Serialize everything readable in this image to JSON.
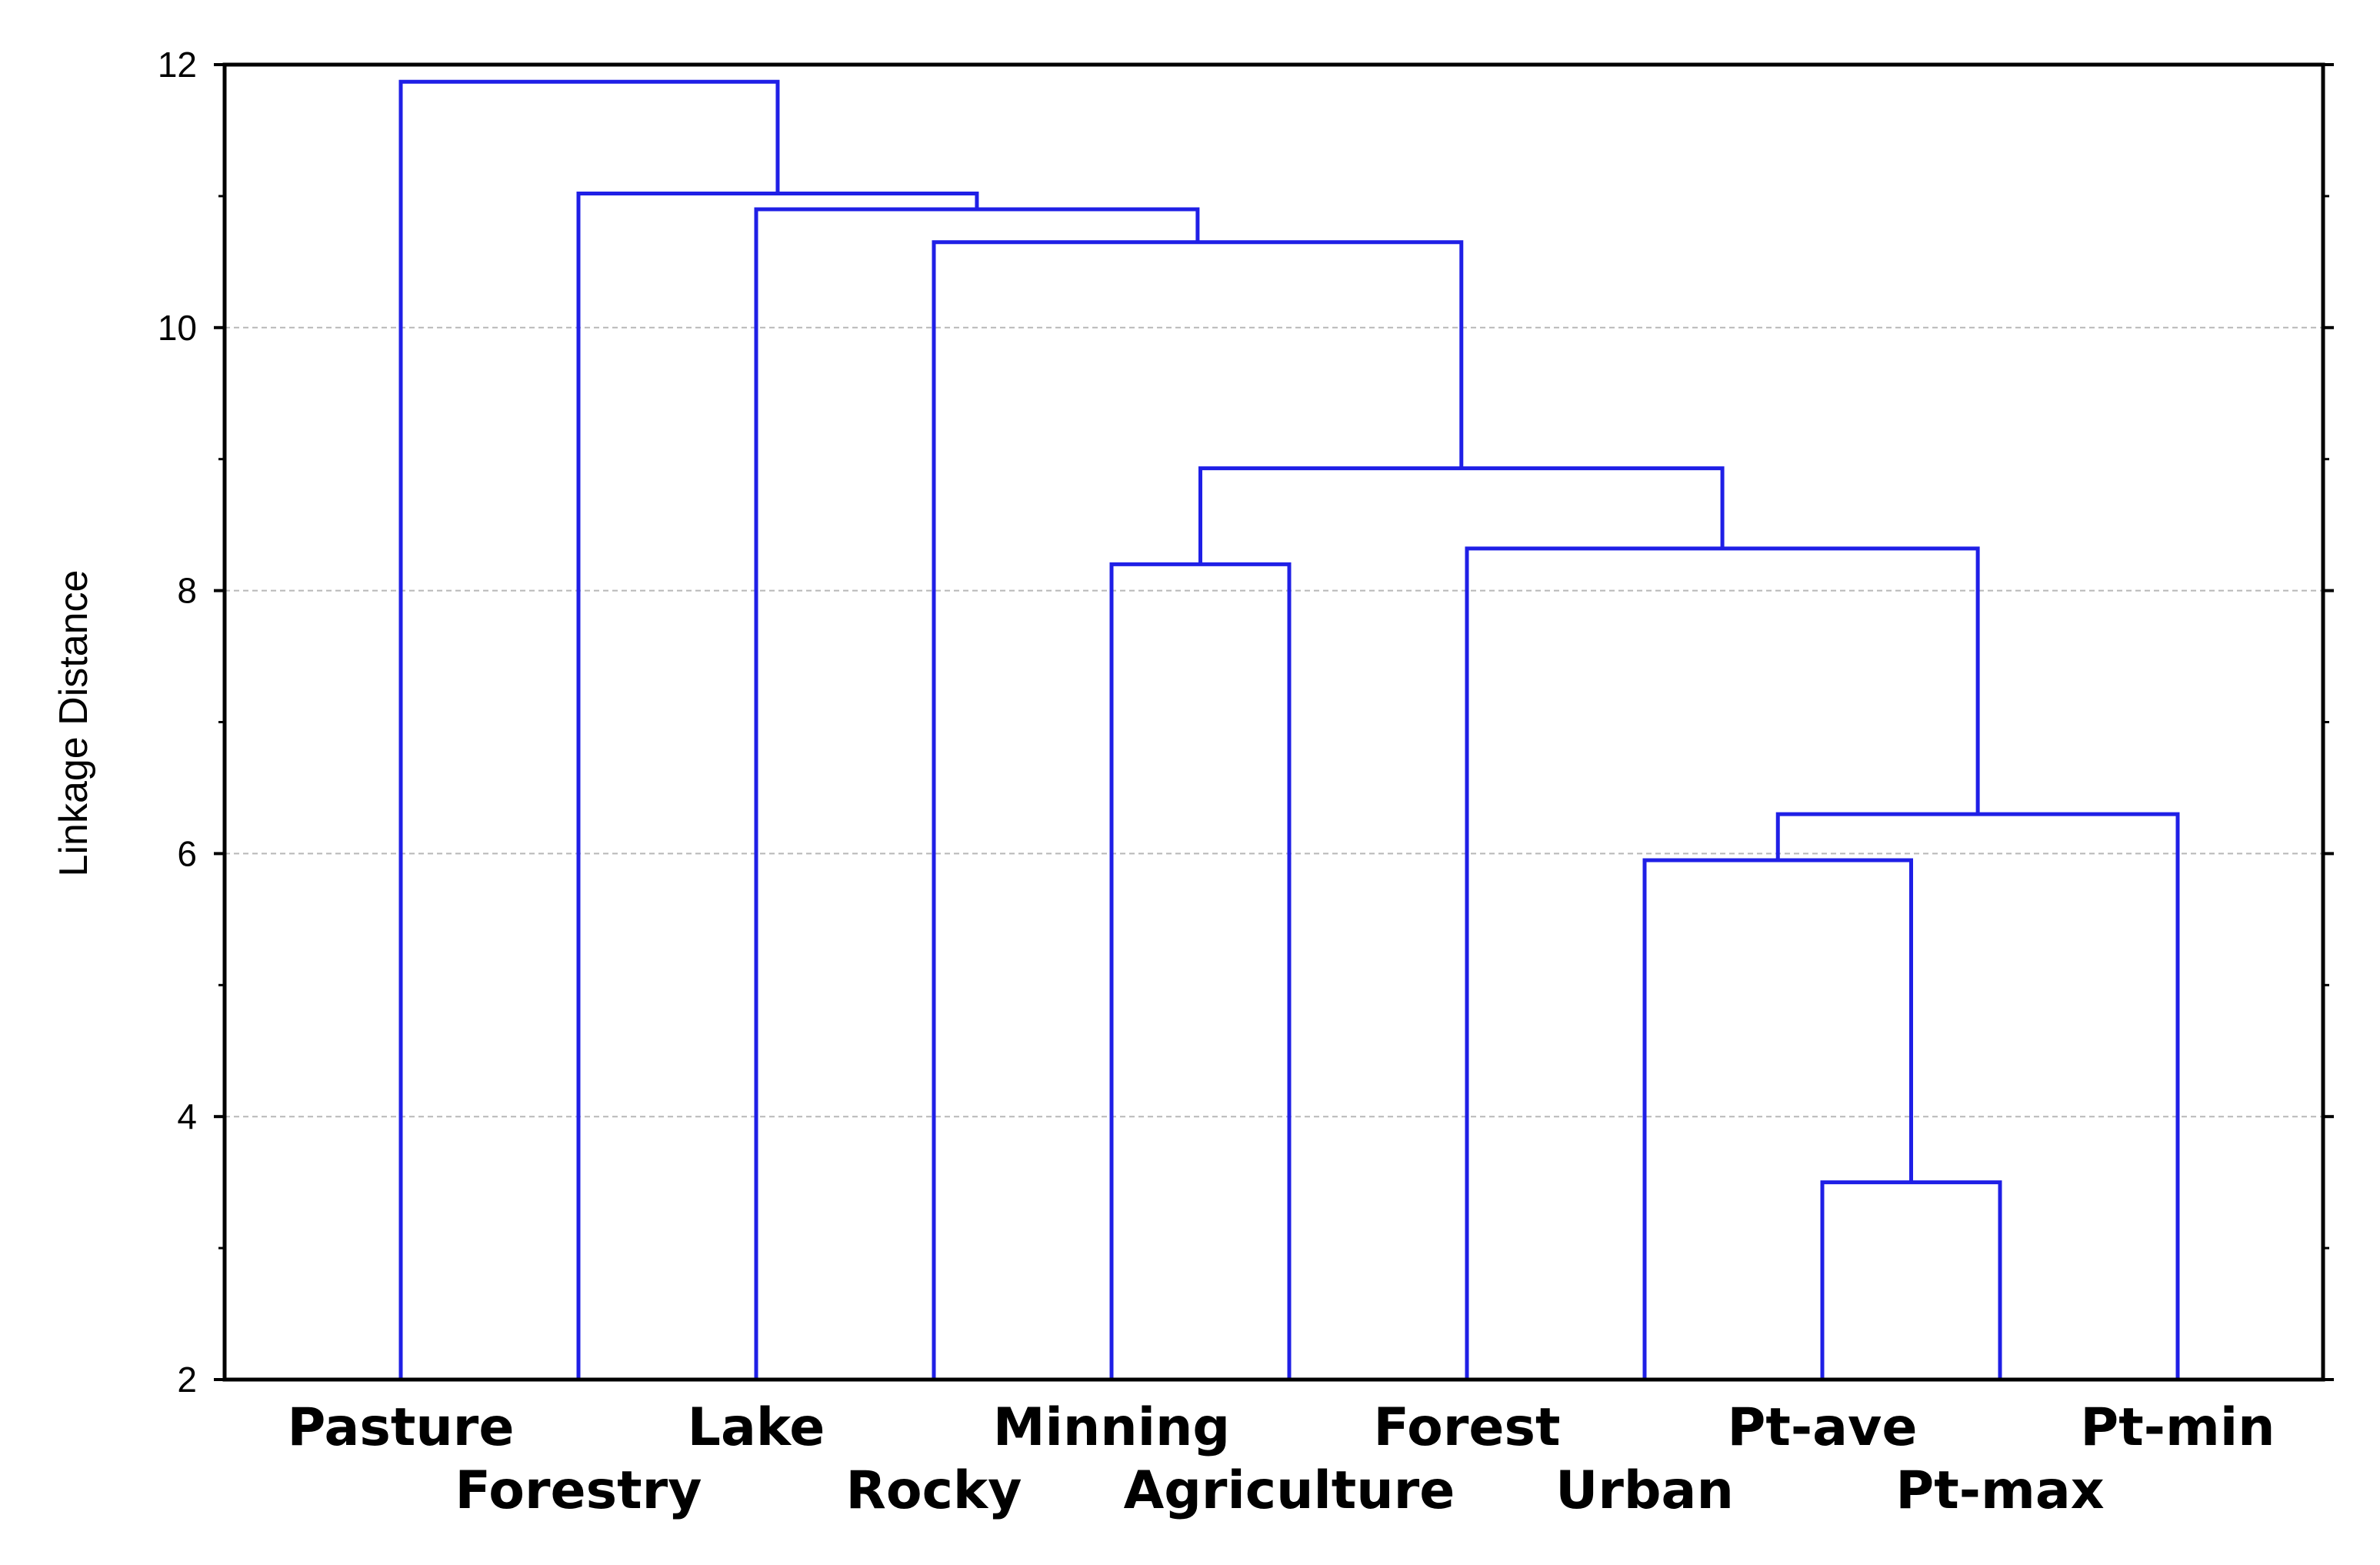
{
  "chart_data": {
    "type": "dendrogram",
    "xlabel": "",
    "ylabel": "Linkage Distance",
    "ylim": [
      2,
      12
    ],
    "yticks": [
      2,
      4,
      6,
      8,
      10,
      12
    ],
    "grid": "horizontal-dashed",
    "line_color": "#1f1fe6",
    "leaves": [
      "Pasture",
      "Forestry",
      "Lake",
      "Rocky",
      "Minning",
      "Agriculture",
      "Forest",
      "Urban",
      "Pt-ave",
      "Pt-max",
      "Pt-min"
    ],
    "merges": [
      {
        "left": "Pt-ave",
        "right": "Pt-max",
        "height": 3.5
      },
      {
        "left": "Urban",
        "right": "Pt-ave+Pt-max",
        "height": 5.95
      },
      {
        "left": "Urban+Pt-ave+Pt-max",
        "right": "Pt-min",
        "height": 6.3
      },
      {
        "left": "Minning",
        "right": "Agriculture",
        "height": 8.2
      },
      {
        "left": "Forest",
        "right": "Urban+Pt-ave+Pt-max+Pt-min",
        "height": 8.32
      },
      {
        "left": "Minning+Agriculture",
        "right": "Forest+Urban+Pt-ave+Pt-max+Pt-min",
        "height": 8.93
      },
      {
        "left": "Rocky",
        "right": "Minning+Agriculture+Forest+Urban+Pt-ave+Pt-max+Pt-min",
        "height": 10.65
      },
      {
        "left": "Lake",
        "right": "Rocky+Minning+Agriculture+Forest+Urban+Pt-ave+Pt-max+Pt-min",
        "height": 10.9
      },
      {
        "left": "Forestry",
        "right": "Lake+Rocky+Minning+Agriculture+Forest+Urban+Pt-ave+Pt-max+Pt-min",
        "height": 11.02
      },
      {
        "left": "Pasture",
        "right": "Forestry+Lake+Rocky+Minning+Agriculture+Forest+Urban+Pt-ave+Pt-max+Pt-min",
        "height": 11.87
      }
    ]
  }
}
